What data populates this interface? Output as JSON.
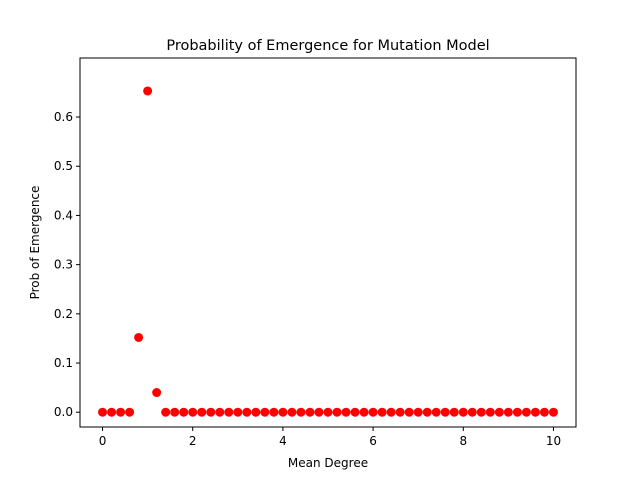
{
  "chart_data": {
    "type": "scatter",
    "title": "Probability of Emergence for Mutation Model",
    "xlabel": "Mean Degree",
    "ylabel": "Prob of Emergence",
    "xlim": [
      -0.5,
      10.5
    ],
    "ylim": [
      -0.03,
      0.72
    ],
    "xticks": [
      0,
      2,
      4,
      6,
      8,
      10
    ],
    "xtick_labels": [
      "0",
      "2",
      "4",
      "6",
      "8",
      "10"
    ],
    "yticks": [
      0.0,
      0.1,
      0.2,
      0.3,
      0.4,
      0.5,
      0.6
    ],
    "ytick_labels": [
      "0.0",
      "0.1",
      "0.2",
      "0.3",
      "0.4",
      "0.5",
      "0.6"
    ],
    "grid": false,
    "marker_color": "#ff0000",
    "points": [
      {
        "x": 0.0,
        "y": 0.0
      },
      {
        "x": 0.2,
        "y": 0.0
      },
      {
        "x": 0.4,
        "y": 0.0
      },
      {
        "x": 0.6,
        "y": 0.0
      },
      {
        "x": 0.8,
        "y": 0.152
      },
      {
        "x": 1.0,
        "y": 0.653
      },
      {
        "x": 1.2,
        "y": 0.04
      },
      {
        "x": 1.4,
        "y": 0.0
      },
      {
        "x": 1.6,
        "y": 0.0
      },
      {
        "x": 1.8,
        "y": 0.0
      },
      {
        "x": 2.0,
        "y": 0.0
      },
      {
        "x": 2.2,
        "y": 0.0
      },
      {
        "x": 2.4,
        "y": 0.0
      },
      {
        "x": 2.6,
        "y": 0.0
      },
      {
        "x": 2.8,
        "y": 0.0
      },
      {
        "x": 3.0,
        "y": 0.0
      },
      {
        "x": 3.2,
        "y": 0.0
      },
      {
        "x": 3.4,
        "y": 0.0
      },
      {
        "x": 3.6,
        "y": 0.0
      },
      {
        "x": 3.8,
        "y": 0.0
      },
      {
        "x": 4.0,
        "y": 0.0
      },
      {
        "x": 4.2,
        "y": 0.0
      },
      {
        "x": 4.4,
        "y": 0.0
      },
      {
        "x": 4.6,
        "y": 0.0
      },
      {
        "x": 4.8,
        "y": 0.0
      },
      {
        "x": 5.0,
        "y": 0.0
      },
      {
        "x": 5.2,
        "y": 0.0
      },
      {
        "x": 5.4,
        "y": 0.0
      },
      {
        "x": 5.6,
        "y": 0.0
      },
      {
        "x": 5.8,
        "y": 0.0
      },
      {
        "x": 6.0,
        "y": 0.0
      },
      {
        "x": 6.2,
        "y": 0.0
      },
      {
        "x": 6.4,
        "y": 0.0
      },
      {
        "x": 6.6,
        "y": 0.0
      },
      {
        "x": 6.8,
        "y": 0.0
      },
      {
        "x": 7.0,
        "y": 0.0
      },
      {
        "x": 7.2,
        "y": 0.0
      },
      {
        "x": 7.4,
        "y": 0.0
      },
      {
        "x": 7.6,
        "y": 0.0
      },
      {
        "x": 7.8,
        "y": 0.0
      },
      {
        "x": 8.0,
        "y": 0.0
      },
      {
        "x": 8.2,
        "y": 0.0
      },
      {
        "x": 8.4,
        "y": 0.0
      },
      {
        "x": 8.6,
        "y": 0.0
      },
      {
        "x": 8.8,
        "y": 0.0
      },
      {
        "x": 9.0,
        "y": 0.0
      },
      {
        "x": 9.2,
        "y": 0.0
      },
      {
        "x": 9.4,
        "y": 0.0
      },
      {
        "x": 9.6,
        "y": 0.0
      },
      {
        "x": 9.8,
        "y": 0.0
      },
      {
        "x": 10.0,
        "y": 0.0
      }
    ]
  }
}
